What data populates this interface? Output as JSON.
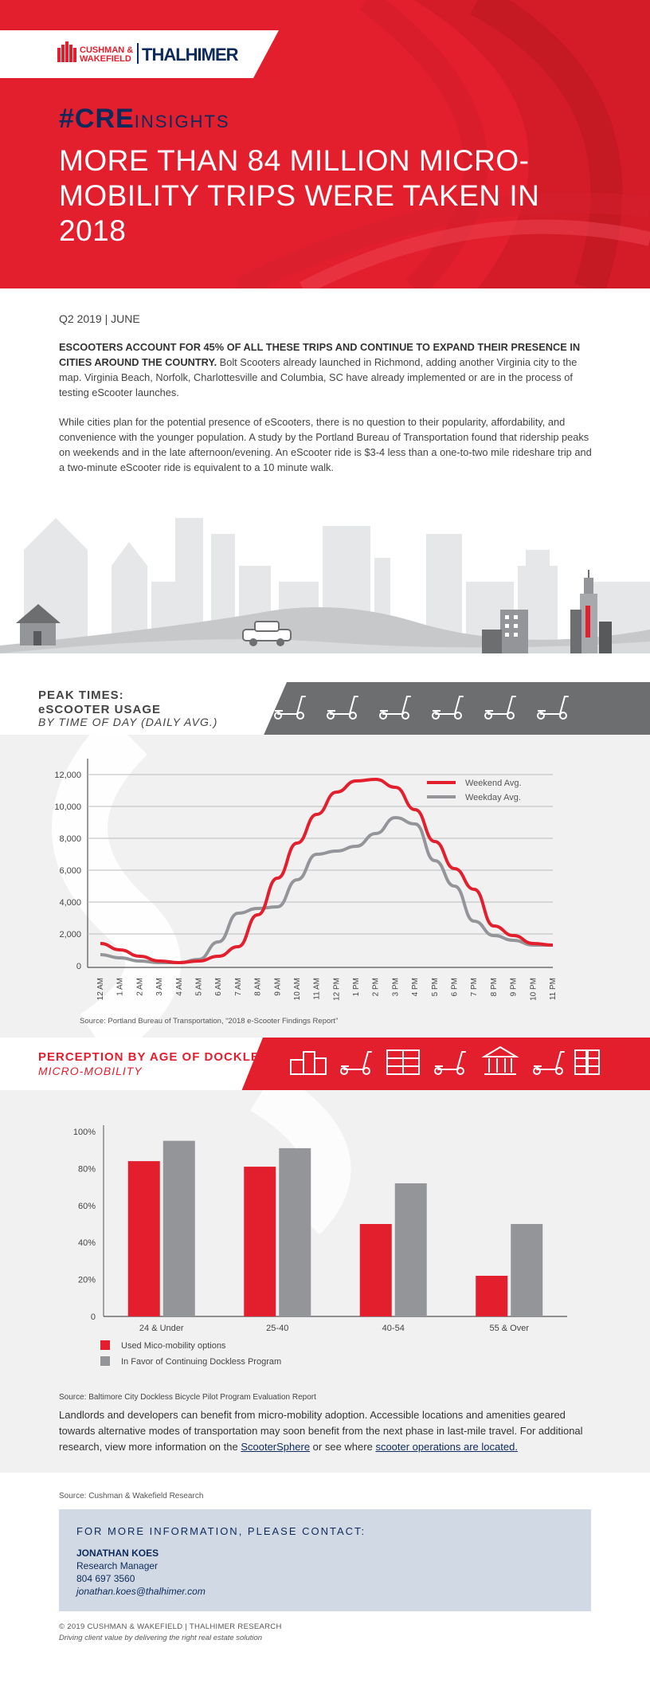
{
  "hero": {
    "brand_left": "CUSHMAN & WAKEFIELD",
    "brand_right": "THALHIMER",
    "cre_hash": "#CRE",
    "cre_insights": "INSIGHTS",
    "title": "MORE THAN 84 MILLION MICRO-MOBILITY TRIPS WERE TAKEN IN 2018",
    "colors": {
      "red": "#e31e2d",
      "navy": "#0d2a5c",
      "gray": "#939598"
    }
  },
  "intro": {
    "date": "Q2 2019 | JUNE",
    "p1_bold": "ESCOOTERS ACCOUNT FOR 45% OF ALL THESE TRIPS AND CONTINUE TO EXPAND THEIR PRESENCE IN CITIES AROUND THE COUNTRY.",
    "p1_rest": " Bolt Scooters already launched in Richmond, adding another Virginia city to the map. Virginia Beach, Norfolk, Charlottesville and Columbia, SC have already implemented or are in the process of testing eScooter launches.",
    "p2": "While cities plan for the potential presence of eScooters, there is no question to their popularity, affordability, and convenience with the younger population. A study by the Portland Bureau of Transportation found that ridership peaks on weekends and in the late afternoon/evening. An eScooter ride is $3-4 less than a one-to-two mile rideshare trip and a two-minute eScooter ride is equivalent to a 10 minute walk."
  },
  "band1": {
    "line1": "PEAK TIMES:",
    "line2": "eSCOOTER USAGE",
    "line3": "BY TIME OF DAY (DAILY AVG.)",
    "icons": [
      "scooter-icon",
      "scooter-icon",
      "scooter-icon",
      "scooter-icon",
      "scooter-icon",
      "scooter-icon"
    ]
  },
  "band2": {
    "line1": "PERCEPTION BY AGE OF DOCKLESS",
    "line2": "MICRO-MOBILITY",
    "icons": [
      "buildings-icon",
      "scooter-icon",
      "office-icon",
      "scooter-icon",
      "bank-icon",
      "scooter-icon",
      "apartment-icon"
    ]
  },
  "chart_data": [
    {
      "type": "line",
      "title": "PEAK TIMES: eSCOOTER USAGE BY TIME OF DAY (DAILY AVG.)",
      "x": [
        "12 AM",
        "1 AM",
        "2 AM",
        "3 AM",
        "4 AM",
        "5 AM",
        "6 AM",
        "7 AM",
        "8 AM",
        "9 AM",
        "10 AM",
        "11 AM",
        "12 PM",
        "1 PM",
        "2 PM",
        "3 PM",
        "4 PM",
        "5 PM",
        "6 PM",
        "7 PM",
        "8 PM",
        "9 PM",
        "10 PM",
        "11 PM"
      ],
      "series": [
        {
          "name": "Weekend Avg.",
          "color": "#e31e2d",
          "values": [
            1400,
            1000,
            600,
            300,
            200,
            300,
            600,
            1200,
            3200,
            5500,
            7700,
            9500,
            10900,
            11600,
            11700,
            11200,
            9800,
            7800,
            6100,
            4800,
            2500,
            1900,
            1400,
            1300
          ]
        },
        {
          "name": "Weekday Avg.",
          "color": "#939598",
          "values": [
            700,
            500,
            300,
            200,
            200,
            400,
            1500,
            3300,
            3600,
            3700,
            5400,
            7000,
            7200,
            7500,
            8300,
            9300,
            8900,
            6600,
            5000,
            2800,
            1900,
            1600,
            1300,
            1300
          ]
        }
      ],
      "yticks": [
        "12,000",
        "10,000",
        "8,000",
        "6,000",
        "4,000",
        "2,000",
        "0"
      ],
      "ylim": [
        0,
        13000
      ],
      "source": "Source: Portland Bureau of Transportation, “2018 e-Scooter Findings Report”"
    },
    {
      "type": "bar",
      "title": "PERCEPTION BY AGE OF DOCKLESS MICRO-MOBILITY",
      "categories": [
        "24 & Under",
        "25-40",
        "40-54",
        "55 & Over"
      ],
      "series": [
        {
          "name": "Used Mico-mobility options",
          "color": "#e31e2d",
          "values": [
            84,
            81,
            50,
            22
          ]
        },
        {
          "name": "In Favor of Continuing Dockless Program",
          "color": "#939598",
          "values": [
            95,
            91,
            72,
            50
          ]
        }
      ],
      "yticks": [
        "100%",
        "80%",
        "60%",
        "40%",
        "20%",
        "0"
      ],
      "ylim": [
        0,
        100
      ],
      "source": "Source: Baltimore City Dockless Bicycle Pilot Program Evaluation Report"
    }
  ],
  "closing": {
    "p3_a": "Landlords and developers can benefit from micro-mobility adoption. Accessible locations and amenities geared towards alternative modes of transportation may soon benefit from the next phase in last-mile travel. For additional research, view more information on the ",
    "link1": "ScooterSphere",
    "p3_b": " or see where ",
    "link2": "scooter operations are located.",
    "source": "Source: Cushman & Wakefield Research"
  },
  "contact": {
    "heading": "FOR MORE INFORMATION, PLEASE CONTACT:",
    "name": "JONATHAN KOES",
    "title": "Research Manager",
    "phone": "804 697 3560",
    "email": "jonathan.koes@thalhimer.com"
  },
  "footer": {
    "copyright": "© 2019 CUSHMAN & WAKEFIELD | THALHIMER RESEARCH",
    "tagline": "Driving client value by delivering the right real estate solution"
  }
}
